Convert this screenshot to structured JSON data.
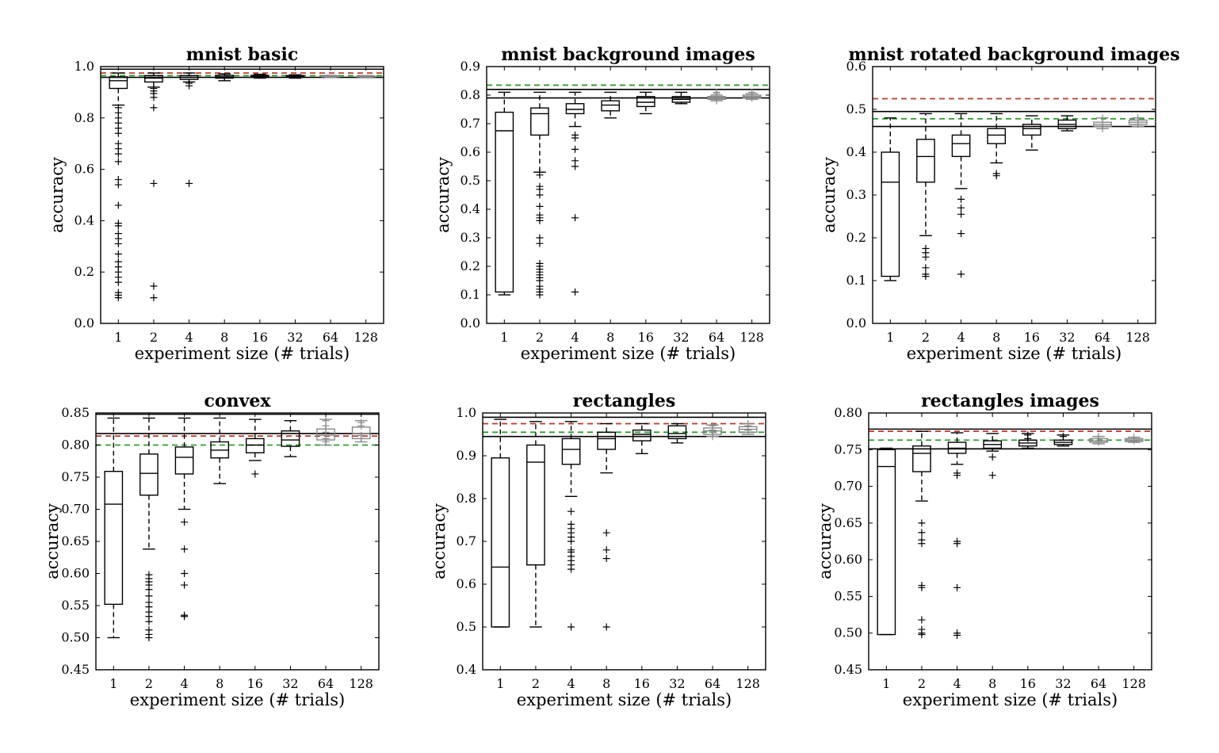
{
  "figure": {
    "background": "#ffffff",
    "colors": {
      "box": "#000000",
      "red_dashed": "#c0392b",
      "green_dashed": "#2ca02c",
      "faint_outlier": "#888888"
    }
  },
  "chart_data": [
    {
      "type": "box",
      "title": "mnist basic",
      "xlabel": "experiment size (# trials)",
      "ylabel": "accuracy",
      "categories": [
        "1",
        "2",
        "4",
        "8",
        "16",
        "32",
        "64",
        "128"
      ],
      "ylim": [
        0.0,
        1.0
      ],
      "yticks": [
        "0.0",
        "0.2",
        "0.4",
        "0.6",
        "0.8",
        "1.0"
      ],
      "yticks_values": [
        0.0,
        0.2,
        0.4,
        0.6,
        0.8,
        1.0
      ],
      "grid": false,
      "boxes": [
        {
          "q1": 0.915,
          "med": 0.945,
          "q3": 0.96,
          "wlo": 0.85,
          "whi": 0.975,
          "outliers": [
            0.84,
            0.82,
            0.8,
            0.78,
            0.76,
            0.74,
            0.7,
            0.68,
            0.66,
            0.63,
            0.56,
            0.54,
            0.46,
            0.39,
            0.38,
            0.35,
            0.33,
            0.31,
            0.27,
            0.24,
            0.22,
            0.2,
            0.18,
            0.16,
            0.12,
            0.11,
            0.1
          ]
        },
        {
          "q1": 0.94,
          "med": 0.955,
          "q3": 0.965,
          "wlo": 0.92,
          "whi": 0.975,
          "outliers": [
            0.915,
            0.905,
            0.895,
            0.88,
            0.84,
            0.545,
            0.145,
            0.1
          ]
        },
        {
          "q1": 0.95,
          "med": 0.958,
          "q3": 0.965,
          "wlo": 0.94,
          "whi": 0.975,
          "outliers": [
            0.935,
            0.925,
            0.545
          ]
        },
        {
          "q1": 0.955,
          "med": 0.96,
          "q3": 0.966,
          "wlo": 0.945,
          "whi": 0.972,
          "outliers": []
        },
        {
          "q1": 0.958,
          "med": 0.962,
          "q3": 0.966,
          "wlo": 0.955,
          "whi": 0.97,
          "outliers": []
        },
        {
          "q1": 0.958,
          "med": 0.962,
          "q3": 0.965,
          "wlo": 0.955,
          "whi": 0.968,
          "outliers": []
        },
        {
          "q1": 0.96,
          "med": 0.962,
          "q3": 0.964,
          "wlo": 0.958,
          "whi": 0.966,
          "outliers": []
        },
        {
          "q1": 0.96,
          "med": 0.962,
          "q3": 0.964,
          "wlo": 0.959,
          "whi": 0.965,
          "outliers": []
        }
      ],
      "hlines": [
        {
          "y": 0.99,
          "style": "solid",
          "color": "#000000"
        },
        {
          "y": 0.958,
          "style": "solid",
          "color": "#000000"
        },
        {
          "y": 0.975,
          "style": "dashed",
          "color": "#c0392b"
        },
        {
          "y": 0.965,
          "style": "dashed",
          "color": "#2ca02c"
        }
      ]
    },
    {
      "type": "box",
      "title": "mnist background images",
      "xlabel": "experiment size (# trials)",
      "ylabel": "accuracy",
      "categories": [
        "1",
        "2",
        "4",
        "8",
        "16",
        "32",
        "64",
        "128"
      ],
      "ylim": [
        0.0,
        0.9
      ],
      "yticks": [
        "0.0",
        "0.1",
        "0.2",
        "0.3",
        "0.4",
        "0.5",
        "0.6",
        "0.7",
        "0.8",
        "0.9"
      ],
      "yticks_values": [
        0.0,
        0.1,
        0.2,
        0.3,
        0.4,
        0.5,
        0.6,
        0.7,
        0.8,
        0.9
      ],
      "grid": false,
      "boxes": [
        {
          "q1": 0.11,
          "med": 0.675,
          "q3": 0.74,
          "wlo": 0.1,
          "whi": 0.81,
          "outliers": []
        },
        {
          "q1": 0.66,
          "med": 0.735,
          "q3": 0.755,
          "wlo": 0.53,
          "whi": 0.81,
          "outliers": [
            0.53,
            0.52,
            0.48,
            0.47,
            0.45,
            0.41,
            0.38,
            0.37,
            0.36,
            0.3,
            0.28,
            0.21,
            0.2,
            0.19,
            0.18,
            0.17,
            0.16,
            0.15,
            0.13,
            0.12,
            0.11,
            0.1
          ]
        },
        {
          "q1": 0.735,
          "med": 0.75,
          "q3": 0.77,
          "wlo": 0.69,
          "whi": 0.81,
          "outliers": [
            0.66,
            0.65,
            0.61,
            0.57,
            0.55,
            0.37,
            0.11
          ]
        },
        {
          "q1": 0.745,
          "med": 0.765,
          "q3": 0.78,
          "wlo": 0.72,
          "whi": 0.81,
          "outliers": []
        },
        {
          "q1": 0.76,
          "med": 0.775,
          "q3": 0.795,
          "wlo": 0.735,
          "whi": 0.81,
          "outliers": []
        },
        {
          "q1": 0.775,
          "med": 0.785,
          "q3": 0.795,
          "wlo": 0.77,
          "whi": 0.81,
          "outliers": []
        },
        {
          "q1": 0.785,
          "med": 0.79,
          "q3": 0.795,
          "wlo": 0.78,
          "whi": 0.8,
          "outliers": [
            0.81,
            0.805,
            0.78
          ]
        },
        {
          "q1": 0.79,
          "med": 0.795,
          "q3": 0.8,
          "wlo": 0.785,
          "whi": 0.805,
          "outliers": [
            0.81,
            0.79
          ]
        }
      ],
      "hlines": [
        {
          "y": 0.82,
          "style": "solid",
          "color": "#000000"
        },
        {
          "y": 0.79,
          "style": "solid",
          "color": "#000000"
        },
        {
          "y": 0.835,
          "style": "dashed",
          "color": "#c0392b"
        },
        {
          "y": 0.835,
          "style": "dashed",
          "color": "#2ca02c"
        }
      ]
    },
    {
      "type": "box",
      "title": "mnist rotated background images",
      "xlabel": "experiment size (# trials)",
      "ylabel": "accuracy",
      "categories": [
        "1",
        "2",
        "4",
        "8",
        "16",
        "32",
        "64",
        "128"
      ],
      "ylim": [
        0.0,
        0.6
      ],
      "yticks": [
        "0.0",
        "0.1",
        "0.2",
        "0.3",
        "0.4",
        "0.5",
        "0.6"
      ],
      "yticks_values": [
        0.0,
        0.1,
        0.2,
        0.3,
        0.4,
        0.5,
        0.6
      ],
      "grid": false,
      "boxes": [
        {
          "q1": 0.11,
          "med": 0.33,
          "q3": 0.4,
          "wlo": 0.1,
          "whi": 0.48,
          "outliers": []
        },
        {
          "q1": 0.33,
          "med": 0.39,
          "q3": 0.43,
          "wlo": 0.205,
          "whi": 0.49,
          "outliers": [
            0.175,
            0.165,
            0.155,
            0.13,
            0.115,
            0.11
          ]
        },
        {
          "q1": 0.39,
          "med": 0.42,
          "q3": 0.44,
          "wlo": 0.315,
          "whi": 0.49,
          "outliers": [
            0.29,
            0.27,
            0.255,
            0.21,
            0.115
          ]
        },
        {
          "q1": 0.42,
          "med": 0.44,
          "q3": 0.455,
          "wlo": 0.375,
          "whi": 0.49,
          "outliers": [
            0.35,
            0.345
          ]
        },
        {
          "q1": 0.44,
          "med": 0.455,
          "q3": 0.465,
          "wlo": 0.405,
          "whi": 0.485,
          "outliers": []
        },
        {
          "q1": 0.455,
          "med": 0.465,
          "q3": 0.475,
          "wlo": 0.45,
          "whi": 0.485,
          "outliers": []
        },
        {
          "q1": 0.46,
          "med": 0.465,
          "q3": 0.47,
          "wlo": 0.455,
          "whi": 0.48,
          "outliers": [
            0.48,
            0.46,
            0.455
          ]
        },
        {
          "q1": 0.465,
          "med": 0.47,
          "q3": 0.475,
          "wlo": 0.46,
          "whi": 0.48,
          "outliers": [
            0.48,
            0.465
          ]
        }
      ],
      "hlines": [
        {
          "y": 0.495,
          "style": "solid",
          "color": "#000000"
        },
        {
          "y": 0.46,
          "style": "solid",
          "color": "#000000"
        },
        {
          "y": 0.525,
          "style": "dashed",
          "color": "#c0392b"
        },
        {
          "y": 0.478,
          "style": "dashed",
          "color": "#2ca02c"
        }
      ]
    },
    {
      "type": "box",
      "title": "convex",
      "xlabel": "experiment size (# trials)",
      "ylabel": "accuracy",
      "categories": [
        "1",
        "2",
        "4",
        "8",
        "16",
        "32",
        "64",
        "128"
      ],
      "ylim": [
        0.45,
        0.85
      ],
      "yticks": [
        "0.45",
        "0.50",
        "0.55",
        "0.60",
        "0.65",
        "0.70",
        "0.75",
        "0.80",
        "0.85"
      ],
      "yticks_values": [
        0.45,
        0.5,
        0.55,
        0.6,
        0.65,
        0.7,
        0.75,
        0.8,
        0.85
      ],
      "grid": false,
      "boxes": [
        {
          "q1": 0.552,
          "med": 0.708,
          "q3": 0.759,
          "wlo": 0.5,
          "whi": 0.842,
          "outliers": []
        },
        {
          "q1": 0.722,
          "med": 0.756,
          "q3": 0.786,
          "wlo": 0.638,
          "whi": 0.842,
          "outliers": [
            0.598,
            0.592,
            0.587,
            0.582,
            0.575,
            0.565,
            0.555,
            0.548,
            0.54,
            0.533,
            0.525,
            0.512,
            0.505,
            0.5
          ]
        },
        {
          "q1": 0.755,
          "med": 0.781,
          "q3": 0.797,
          "wlo": 0.7,
          "whi": 0.842,
          "outliers": [
            0.68,
            0.638,
            0.6,
            0.582,
            0.535,
            0.533
          ]
        },
        {
          "q1": 0.78,
          "med": 0.792,
          "q3": 0.805,
          "wlo": 0.74,
          "whi": 0.842,
          "outliers": []
        },
        {
          "q1": 0.788,
          "med": 0.8,
          "q3": 0.81,
          "wlo": 0.776,
          "whi": 0.84,
          "outliers": [
            0.755
          ]
        },
        {
          "q1": 0.798,
          "med": 0.808,
          "q3": 0.822,
          "wlo": 0.782,
          "whi": 0.838,
          "outliers": []
        },
        {
          "q1": 0.808,
          "med": 0.815,
          "q3": 0.825,
          "wlo": 0.8,
          "whi": 0.84,
          "outliers": [
            0.838,
            0.83,
            0.82,
            0.81,
            0.805
          ]
        },
        {
          "q1": 0.81,
          "med": 0.818,
          "q3": 0.828,
          "wlo": 0.805,
          "whi": 0.838,
          "outliers": [
            0.835,
            0.83,
            0.815,
            0.81
          ]
        }
      ],
      "hlines": [
        {
          "y": 0.848,
          "style": "solid",
          "color": "#000000"
        },
        {
          "y": 0.818,
          "style": "solid",
          "color": "#000000"
        },
        {
          "y": 0.814,
          "style": "dashed",
          "color": "#c0392b"
        },
        {
          "y": 0.8,
          "style": "dashed",
          "color": "#2ca02c"
        }
      ]
    },
    {
      "type": "box",
      "title": "rectangles",
      "xlabel": "experiment size (# trials)",
      "ylabel": "accuracy",
      "categories": [
        "1",
        "2",
        "4",
        "8",
        "16",
        "32",
        "64",
        "128"
      ],
      "ylim": [
        0.4,
        1.0
      ],
      "yticks": [
        "0.4",
        "0.5",
        "0.6",
        "0.7",
        "0.8",
        "0.9",
        "1.0"
      ],
      "yticks_values": [
        0.4,
        0.5,
        0.6,
        0.7,
        0.8,
        0.9,
        1.0
      ],
      "grid": false,
      "boxes": [
        {
          "q1": 0.5,
          "med": 0.64,
          "q3": 0.895,
          "wlo": 0.5,
          "whi": 0.985,
          "outliers": []
        },
        {
          "q1": 0.645,
          "med": 0.885,
          "q3": 0.925,
          "wlo": 0.5,
          "whi": 0.98,
          "outliers": []
        },
        {
          "q1": 0.88,
          "med": 0.915,
          "q3": 0.94,
          "wlo": 0.805,
          "whi": 0.98,
          "outliers": [
            0.77,
            0.74,
            0.73,
            0.72,
            0.71,
            0.7,
            0.68,
            0.675,
            0.665,
            0.655,
            0.645,
            0.635,
            0.5
          ]
        },
        {
          "q1": 0.915,
          "med": 0.94,
          "q3": 0.955,
          "wlo": 0.86,
          "whi": 0.975,
          "outliers": [
            0.72,
            0.68,
            0.66,
            0.5
          ]
        },
        {
          "q1": 0.935,
          "med": 0.95,
          "q3": 0.96,
          "wlo": 0.905,
          "whi": 0.975,
          "outliers": []
        },
        {
          "q1": 0.94,
          "med": 0.952,
          "q3": 0.97,
          "wlo": 0.93,
          "whi": 0.975,
          "outliers": []
        },
        {
          "q1": 0.95,
          "med": 0.958,
          "q3": 0.965,
          "wlo": 0.945,
          "whi": 0.972,
          "outliers": [
            0.97,
            0.96,
            0.955,
            0.945
          ]
        },
        {
          "q1": 0.955,
          "med": 0.962,
          "q3": 0.968,
          "wlo": 0.95,
          "whi": 0.975,
          "outliers": [
            0.975,
            0.97,
            0.96
          ]
        }
      ],
      "hlines": [
        {
          "y": 0.99,
          "style": "solid",
          "color": "#000000"
        },
        {
          "y": 0.945,
          "style": "solid",
          "color": "#000000"
        },
        {
          "y": 0.975,
          "style": "dashed",
          "color": "#c0392b"
        },
        {
          "y": 0.955,
          "style": "dashed",
          "color": "#2ca02c"
        }
      ]
    },
    {
      "type": "box",
      "title": "rectangles images",
      "xlabel": "experiment size (# trials)",
      "ylabel": "accuracy",
      "categories": [
        "1",
        "2",
        "4",
        "8",
        "16",
        "32",
        "64",
        "128"
      ],
      "ylim": [
        0.45,
        0.8
      ],
      "yticks": [
        "0.45",
        "0.50",
        "0.55",
        "0.60",
        "0.65",
        "0.70",
        "0.75",
        "0.80"
      ],
      "yticks_values": [
        0.45,
        0.5,
        0.55,
        0.6,
        0.65,
        0.7,
        0.75,
        0.8
      ],
      "grid": false,
      "boxes": [
        {
          "q1": 0.498,
          "med": 0.727,
          "q3": 0.75,
          "wlo": 0.498,
          "whi": 0.752,
          "outliers": []
        },
        {
          "q1": 0.72,
          "med": 0.745,
          "q3": 0.755,
          "wlo": 0.68,
          "whi": 0.775,
          "outliers": [
            0.65,
            0.637,
            0.627,
            0.622,
            0.565,
            0.562,
            0.518,
            0.505,
            0.5,
            0.498
          ]
        },
        {
          "q1": 0.745,
          "med": 0.752,
          "q3": 0.76,
          "wlo": 0.73,
          "whi": 0.773,
          "outliers": [
            0.718,
            0.715,
            0.625,
            0.622,
            0.562,
            0.5,
            0.497
          ]
        },
        {
          "q1": 0.752,
          "med": 0.757,
          "q3": 0.762,
          "wlo": 0.748,
          "whi": 0.772,
          "outliers": [
            0.74,
            0.715
          ]
        },
        {
          "q1": 0.755,
          "med": 0.759,
          "q3": 0.763,
          "wlo": 0.752,
          "whi": 0.772,
          "outliers": [
            0.77,
            0.765
          ]
        },
        {
          "q1": 0.757,
          "med": 0.76,
          "q3": 0.763,
          "wlo": 0.755,
          "whi": 0.77,
          "outliers": [
            0.768
          ]
        },
        {
          "q1": 0.76,
          "med": 0.762,
          "q3": 0.765,
          "wlo": 0.758,
          "whi": 0.768,
          "outliers": [
            0.768,
            0.765,
            0.76
          ]
        },
        {
          "q1": 0.761,
          "med": 0.763,
          "q3": 0.765,
          "wlo": 0.76,
          "whi": 0.767,
          "outliers": [
            0.767,
            0.762
          ]
        }
      ],
      "hlines": [
        {
          "y": 0.778,
          "style": "solid",
          "color": "#000000"
        },
        {
          "y": 0.751,
          "style": "solid",
          "color": "#000000"
        },
        {
          "y": 0.775,
          "style": "dashed",
          "color": "#c0392b"
        },
        {
          "y": 0.763,
          "style": "dashed",
          "color": "#2ca02c"
        }
      ]
    }
  ]
}
